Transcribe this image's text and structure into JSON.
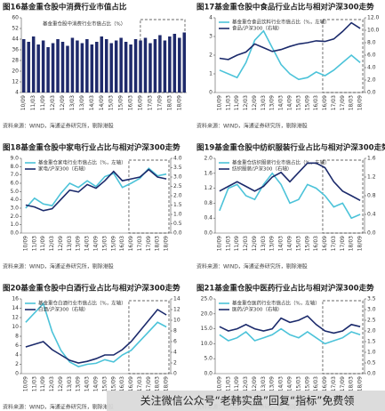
{
  "chart_data": [
    {
      "type": "bar",
      "title": "图16基金重仓股中消费行业市值占比",
      "source": "资料来源：WIND，海通证券研究所，剔除港股",
      "categories": [
        "10/09",
        null,
        "11/03",
        null,
        "11/09",
        null,
        "12/03",
        null,
        "12/09",
        null,
        "13/03",
        null,
        "13/09",
        null,
        "14/03",
        null,
        "14/09",
        null,
        "15/03",
        null,
        "15/09",
        null,
        "16/03",
        null,
        "16/09",
        null,
        "17/03",
        null,
        "17/09",
        null,
        "18/03",
        null,
        "18/09",
        null
      ],
      "series": [
        {
          "name": "基金重仓股中消费行业市值占比（%）",
          "color": "#1f2a6b",
          "values": [
            44,
            42,
            46,
            40,
            43,
            38,
            41,
            44,
            42,
            39,
            45,
            43,
            41,
            44,
            40,
            42,
            46,
            44,
            41,
            43,
            45,
            42,
            40,
            44,
            43,
            45,
            41,
            44,
            47,
            43,
            46,
            48,
            45,
            49
          ]
        }
      ],
      "ylim": [
        4,
        60
      ],
      "yticks": [
        4,
        12,
        20,
        28,
        36,
        44,
        52,
        60
      ]
    },
    {
      "type": "line",
      "title": "图17基金重仓股中食品行业占比与相对沪深300走势",
      "source": "资料来源：WIND，海通证券研究所，剔除港股",
      "categories": [
        "10/09",
        "11/03",
        "11/09",
        "12/03",
        "12/09",
        "13/03",
        "13/09",
        "14/03",
        "14/09",
        "15/03",
        "15/09",
        "16/03",
        "16/09",
        "17/03",
        "17/09",
        "18/03",
        "18/09"
      ],
      "series": [
        {
          "name": "基金重仓食品饮料行业市值占比（%，左轴）",
          "color": "#4cc3d9",
          "values": [
            1.2,
            1.0,
            0.8,
            1.6,
            2.8,
            3.3,
            2.4,
            1.5,
            1.0,
            0.7,
            0.8,
            1.1,
            0.9,
            1.2,
            1.6,
            2.0,
            1.6
          ]
        },
        {
          "name": "食品/沪深300（右轴）",
          "color": "#1b2a6b",
          "axis": "y2",
          "values": [
            5.5,
            5.3,
            6.0,
            6.5,
            7.8,
            7.2,
            6.6,
            6.9,
            7.4,
            7.8,
            8.0,
            8.3,
            8.2,
            8.6,
            9.8,
            11.2,
            10.3
          ]
        }
      ],
      "ylim": [
        0,
        4
      ],
      "yticks": [
        0,
        1,
        2,
        3,
        4
      ],
      "y2lim": [
        0,
        12
      ],
      "y2ticks": [
        {
          "value": 0,
          "label": "0.0"
        },
        {
          "value": 2,
          "label": "2.0"
        },
        {
          "value": 4,
          "label": "4.0"
        },
        {
          "value": 6,
          "label": "6.0"
        },
        {
          "value": 8,
          "label": "8.0"
        },
        {
          "value": 10,
          "label": "10.0"
        },
        {
          "value": 12,
          "label": "12.0"
        }
      ]
    },
    {
      "type": "line",
      "title": "图18基金重仓股中家电行业占比与相对沪深300走势",
      "source": "资料来源：WIND，海通证券研究所，剔除港股",
      "categories": [
        "10/09",
        "11/03",
        "11/09",
        "12/03",
        "12/09",
        "13/03",
        "13/09",
        "14/03",
        "14/09",
        "15/03",
        "15/09",
        "16/03",
        "16/09",
        "17/03",
        "17/09",
        "18/03",
        "18/09"
      ],
      "series": [
        {
          "name": "基金重仓家电行业市值占比（%，左轴）",
          "color": "#4cc3d9",
          "values": [
            3.0,
            4.2,
            3.5,
            3.3,
            4.8,
            6.0,
            5.5,
            6.3,
            5.6,
            6.8,
            7.2,
            5.5,
            6.0,
            6.6,
            7.8,
            6.9,
            7.1
          ]
        },
        {
          "name": "家电/沪深300（右轴）",
          "color": "#1b2a6b",
          "axis": "y2",
          "values": [
            1.5,
            1.4,
            1.2,
            1.3,
            1.8,
            2.3,
            2.2,
            2.6,
            2.4,
            2.8,
            3.3,
            2.8,
            2.9,
            3.0,
            3.4,
            3.0,
            2.9
          ]
        }
      ],
      "ylim": [
        0,
        9
      ],
      "yticks": [
        {
          "value": 0,
          "label": "0.0"
        },
        {
          "value": 1,
          "label": "1.0"
        },
        {
          "value": 2,
          "label": "2.0"
        },
        {
          "value": 3,
          "label": "3.0"
        },
        {
          "value": 4,
          "label": "4.0"
        },
        {
          "value": 5,
          "label": "5.0"
        },
        {
          "value": 6,
          "label": "6.0"
        },
        {
          "value": 7,
          "label": "7.0"
        },
        {
          "value": 8,
          "label": "8.0"
        },
        {
          "value": 9,
          "label": "9.0"
        }
      ],
      "y2lim": [
        0,
        4
      ],
      "y2ticks": [
        {
          "value": 0,
          "label": "0.0"
        },
        0.5,
        {
          "value": 1,
          "label": "1.0"
        },
        1.5,
        {
          "value": 2,
          "label": "2.0"
        },
        2.5,
        {
          "value": 3,
          "label": "3.0"
        },
        3.5,
        {
          "value": 4,
          "label": "4.0"
        }
      ]
    },
    {
      "type": "line",
      "title": "图19基金重仓股中纺织服装行业占比与相对沪深300走势",
      "source": "资料来源：WIND，海通证券研究所，剔除港股",
      "categories": [
        "10/09",
        "11/03",
        "11/09",
        "12/03",
        "12/09",
        "13/03",
        "13/09",
        "14/03",
        "14/09",
        "15/03",
        "15/09",
        "16/03",
        "16/09",
        "17/03",
        "17/09",
        "18/03",
        "18/09"
      ],
      "series": [
        {
          "name": "基金重仓纺织服装行业市值占比（%，左轴）",
          "color": "#4cc3d9",
          "values": [
            0.6,
            1.2,
            1.3,
            1.0,
            0.9,
            1.3,
            1.6,
            1.3,
            0.8,
            0.9,
            1.3,
            1.2,
            1.0,
            0.7,
            0.8,
            0.4,
            0.5
          ]
        },
        {
          "name": "纺织服装/沪深300（右轴）",
          "color": "#1b2a6b",
          "axis": "y2",
          "values": [
            0.9,
            1.0,
            1.1,
            1.0,
            0.9,
            1.0,
            1.2,
            1.3,
            1.1,
            1.3,
            1.5,
            1.5,
            1.4,
            1.1,
            0.9,
            0.8,
            0.7
          ]
        }
      ],
      "ylim": [
        0,
        2
      ],
      "yticks": [
        {
          "value": 0,
          "label": "0.0"
        },
        0.4,
        0.8,
        1.2,
        1.6,
        {
          "value": 2,
          "label": "2.0"
        }
      ],
      "y2lim": [
        0,
        1.6
      ],
      "y2ticks": [
        {
          "value": 0,
          "label": "0.0"
        },
        0.4,
        0.8,
        1.2,
        1.6
      ]
    },
    {
      "type": "line",
      "title": "图20基金重仓股中白酒行业占比与相对沪深300走势",
      "source": "资料来源：WIND，海通证券研究所，剔除港股",
      "categories": [
        "10/09",
        "11/03",
        "11/09",
        "12/03",
        "12/09",
        "13/03",
        "13/09",
        "14/03",
        "14/09",
        "15/03",
        "15/09",
        "16/03",
        "16/09",
        "17/03",
        "17/09",
        "18/03",
        "18/09"
      ],
      "series": [
        {
          "name": "基金重仓白酒行业市值占比（%，左轴）",
          "color": "#4cc3d9",
          "values": [
            11,
            13,
            15,
            9,
            5,
            2.5,
            1.5,
            2,
            2.2,
            3,
            2.5,
            4,
            5,
            7,
            9,
            11,
            10
          ]
        },
        {
          "name": "白酒/沪深300（右轴）",
          "color": "#1b2a6b",
          "axis": "y2",
          "values": [
            5,
            5.5,
            6,
            4.5,
            3.5,
            2.5,
            2,
            2.3,
            2.8,
            3.5,
            3.5,
            4.5,
            6,
            8,
            10,
            12,
            11
          ]
        }
      ],
      "ylim": [
        0,
        16
      ],
      "yticks": [
        0,
        2,
        4,
        6,
        8,
        10,
        12,
        14,
        16
      ],
      "y2lim": [
        0,
        14
      ],
      "y2ticks": [
        0,
        2,
        4,
        6,
        8,
        10,
        12,
        14
      ]
    },
    {
      "type": "line",
      "title": "图21基金重仓股中医药行业占比与相对沪深300走势",
      "source": "资料来源：WIND，海通证券研究所，剔除港股",
      "categories": [
        "10/09",
        "11/03",
        "11/09",
        "12/03",
        "12/09",
        "13/03",
        "13/09",
        "14/03",
        "14/09",
        "15/03",
        "15/09",
        "16/03",
        "16/09",
        "17/03",
        "17/09",
        "18/03",
        "18/09"
      ],
      "series": [
        {
          "name": "基金重仓医药行业市值占比（%，左轴）",
          "color": "#4cc3d9",
          "values": [
            13,
            11,
            12,
            14,
            11,
            12,
            13,
            15,
            13,
            12,
            14,
            12,
            10,
            11,
            12,
            14,
            13
          ]
        },
        {
          "name": "医药/沪深300（右轴）",
          "color": "#1b2a6b",
          "axis": "y2",
          "values": [
            2.2,
            2.0,
            2.1,
            2.3,
            2.1,
            2.0,
            2.1,
            2.6,
            2.4,
            2.5,
            2.7,
            2.3,
            2.0,
            1.9,
            2.0,
            2.3,
            2.2
          ]
        }
      ],
      "ylim": [
        0,
        25
      ],
      "yticks": [
        {
          "value": 0,
          "label": "0.0"
        },
        {
          "value": 5,
          "label": "5.0"
        },
        {
          "value": 10,
          "label": "10.0"
        },
        {
          "value": 15,
          "label": "15.0"
        },
        {
          "value": 20,
          "label": "20.0"
        },
        {
          "value": 25,
          "label": "25.0"
        }
      ],
      "y2lim": [
        0,
        3.5
      ],
      "y2ticks": [
        {
          "value": 0,
          "label": "0.0"
        },
        0.5,
        {
          "value": 1,
          "label": "1.0"
        },
        1.5,
        {
          "value": 2,
          "label": "2.0"
        },
        2.5,
        {
          "value": 3,
          "label": "3.0"
        },
        3.5
      ]
    }
  ],
  "watermark": "关注微信公众号“老韩实盘”回复“指标”免费领"
}
